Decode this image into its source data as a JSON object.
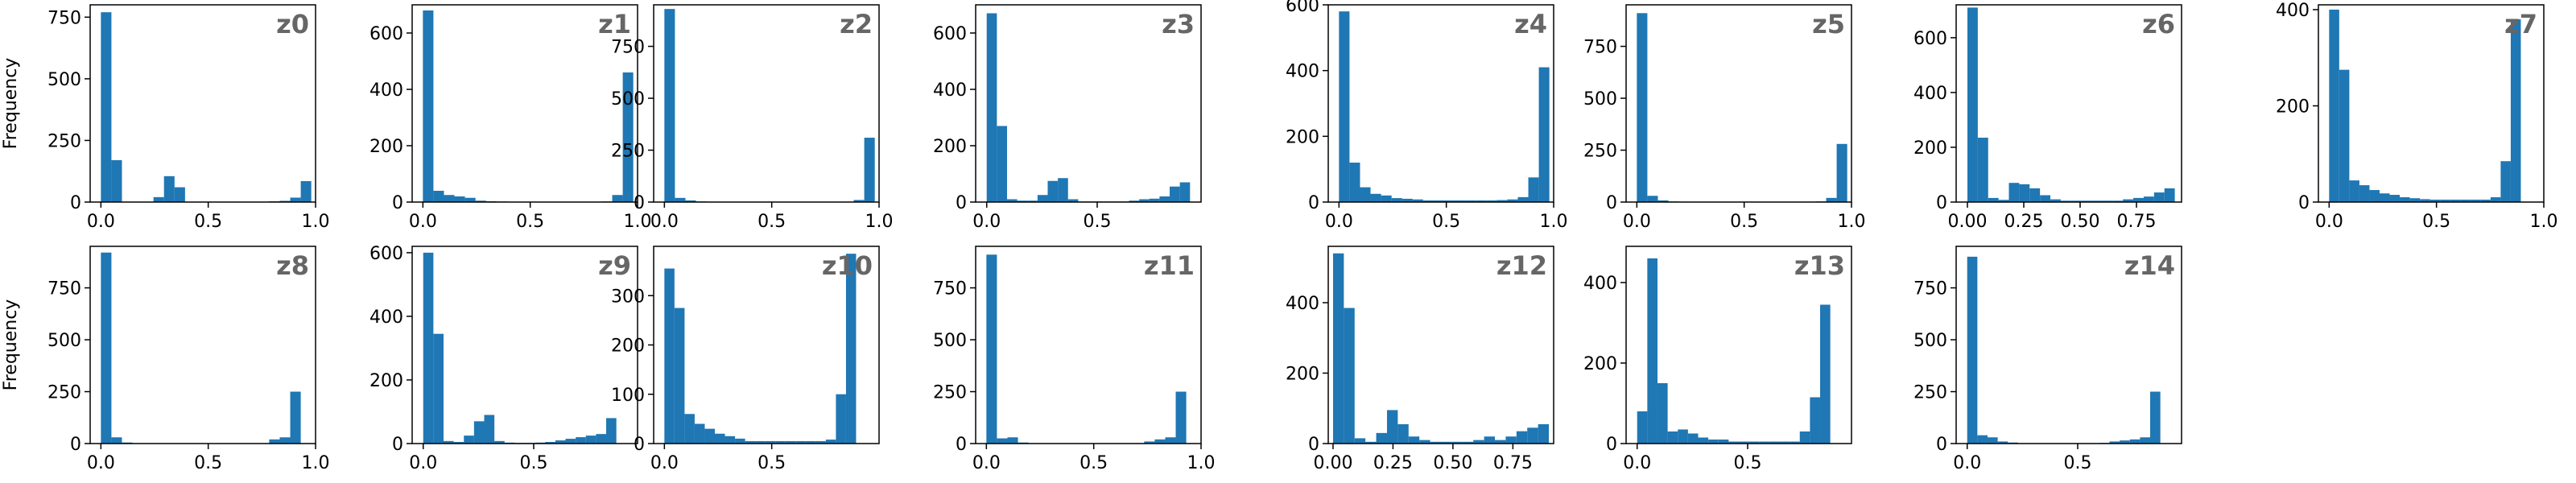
{
  "figure": {
    "bar_color": "#1f77b4",
    "title_color": "#666666"
  },
  "chart_data": [
    {
      "type": "bar",
      "title": "z0",
      "ylabel": "Frequency",
      "xlim": [
        -0.05,
        1.0
      ],
      "ylim": [
        0,
        800
      ],
      "xticks": [
        0,
        0.5,
        1.0
      ],
      "xtick_labels": [
        "0.0",
        "0.5",
        "1.0"
      ],
      "yticks": [
        0,
        250,
        500,
        750
      ],
      "ytick_labels": [
        "0",
        "250",
        "500",
        "750"
      ],
      "bin_start": 0.0,
      "bin_width": 0.049,
      "values": [
        770,
        170,
        0,
        0,
        0,
        20,
        105,
        60,
        0,
        0,
        0,
        0,
        0,
        0,
        0,
        0,
        3,
        5,
        18,
        85
      ]
    },
    {
      "type": "bar",
      "title": "z1",
      "ylabel": "",
      "xlim": [
        -0.05,
        1.0
      ],
      "ylim": [
        0,
        700
      ],
      "xticks": [
        0,
        0.5,
        1.0
      ],
      "xtick_labels": [
        "0.0",
        "0.5",
        "1.0"
      ],
      "yticks": [
        0,
        200,
        400,
        600
      ],
      "ytick_labels": [
        "0",
        "200",
        "400",
        "600"
      ],
      "bin_start": 0.0,
      "bin_width": 0.049,
      "values": [
        680,
        40,
        25,
        20,
        15,
        5,
        3,
        2,
        1,
        1,
        1,
        1,
        1,
        1,
        1,
        1,
        1,
        2,
        25,
        460
      ]
    },
    {
      "type": "bar",
      "title": "z2",
      "ylabel": "",
      "xlim": [
        -0.05,
        1.0
      ],
      "ylim": [
        0,
        950
      ],
      "xticks": [
        0,
        0.5,
        1.0
      ],
      "xtick_labels": [
        "0.0",
        "0.5",
        "1.0"
      ],
      "yticks": [
        0,
        250,
        500,
        750
      ],
      "ytick_labels": [
        "0",
        "250",
        "500",
        "750"
      ],
      "bin_start": 0.0,
      "bin_width": 0.049,
      "values": [
        930,
        20,
        8,
        3,
        2,
        1,
        1,
        1,
        1,
        1,
        1,
        1,
        1,
        1,
        1,
        1,
        1,
        2,
        10,
        310
      ]
    },
    {
      "type": "bar",
      "title": "z3",
      "ylabel": "",
      "xlim": [
        -0.05,
        0.97
      ],
      "ylim": [
        0,
        700
      ],
      "xticks": [
        0,
        0.5
      ],
      "xtick_labels": [
        "0.0",
        "0.5"
      ],
      "yticks": [
        0,
        200,
        400,
        600
      ],
      "ytick_labels": [
        "0",
        "200",
        "400",
        "600"
      ],
      "bin_start": 0.0,
      "bin_width": 0.046,
      "values": [
        670,
        270,
        10,
        5,
        5,
        25,
        75,
        85,
        10,
        2,
        2,
        2,
        2,
        2,
        5,
        10,
        12,
        20,
        55,
        70
      ]
    },
    {
      "type": "bar",
      "title": "z4",
      "ylabel": "",
      "xlim": [
        -0.05,
        1.0
      ],
      "ylim": [
        0,
        600
      ],
      "xticks": [
        0,
        0.5,
        1.0
      ],
      "xtick_labels": [
        "0.0",
        "0.5",
        "1.0"
      ],
      "yticks": [
        0,
        200,
        400,
        600
      ],
      "ytick_labels": [
        "0",
        "200",
        "400",
        "600"
      ],
      "bin_start": 0.0,
      "bin_width": 0.049,
      "values": [
        580,
        120,
        45,
        25,
        20,
        12,
        10,
        8,
        5,
        5,
        5,
        5,
        5,
        5,
        5,
        6,
        8,
        15,
        75,
        410
      ]
    },
    {
      "type": "bar",
      "title": "z5",
      "ylabel": "",
      "xlim": [
        -0.05,
        1.0
      ],
      "ylim": [
        0,
        950
      ],
      "xticks": [
        0,
        0.5,
        1.0
      ],
      "xtick_labels": [
        "0.0",
        "0.5",
        "1.0"
      ],
      "yticks": [
        0,
        250,
        500,
        750
      ],
      "ytick_labels": [
        "0",
        "250",
        "500",
        "750"
      ],
      "bin_start": 0.0,
      "bin_width": 0.049,
      "values": [
        910,
        30,
        8,
        3,
        2,
        1,
        1,
        1,
        1,
        1,
        1,
        1,
        1,
        1,
        1,
        1,
        2,
        3,
        20,
        280
      ]
    },
    {
      "type": "bar",
      "title": "z6",
      "ylabel": "",
      "xlim": [
        -0.05,
        0.95
      ],
      "ylim": [
        0,
        720
      ],
      "xticks": [
        0,
        0.25,
        0.5,
        0.75
      ],
      "xtick_labels": [
        "0.00",
        "0.25",
        "0.50",
        "0.75"
      ],
      "yticks": [
        0,
        200,
        400,
        600
      ],
      "ytick_labels": [
        "0",
        "200",
        "400",
        "600"
      ],
      "bin_start": 0.0,
      "bin_width": 0.046,
      "values": [
        710,
        235,
        15,
        8,
        70,
        65,
        50,
        25,
        10,
        5,
        5,
        5,
        5,
        5,
        5,
        10,
        15,
        20,
        35,
        50
      ]
    },
    {
      "type": "bar",
      "title": "z7",
      "ylabel": "",
      "xlim": [
        -0.05,
        1.0
      ],
      "ylim": [
        0,
        410
      ],
      "xticks": [
        0,
        0.5,
        1.0
      ],
      "xtick_labels": [
        "0.0",
        "0.5",
        "1.0"
      ],
      "yticks": [
        0,
        200,
        400
      ],
      "ytick_labels": [
        "0",
        "200",
        "400"
      ],
      "bin_start": 0.0,
      "bin_width": 0.047,
      "values": [
        400,
        275,
        45,
        35,
        25,
        18,
        15,
        10,
        8,
        6,
        5,
        5,
        5,
        5,
        5,
        5,
        10,
        85,
        380,
        0
      ]
    },
    {
      "type": "bar",
      "title": "z8",
      "ylabel": "Frequency",
      "xlim": [
        -0.05,
        1.0
      ],
      "ylim": [
        0,
        950
      ],
      "xticks": [
        0,
        0.5,
        1.0
      ],
      "xtick_labels": [
        "0.0",
        "0.5",
        "1.0"
      ],
      "yticks": [
        0,
        250,
        500,
        750
      ],
      "ytick_labels": [
        "0",
        "250",
        "500",
        "750"
      ],
      "bin_start": 0.0,
      "bin_width": 0.049,
      "values": [
        920,
        30,
        5,
        2,
        1,
        1,
        1,
        1,
        1,
        1,
        1,
        1,
        1,
        1,
        1,
        2,
        20,
        30,
        250,
        0
      ]
    },
    {
      "type": "bar",
      "title": "z9",
      "ylabel": "",
      "xlim": [
        -0.05,
        0.97
      ],
      "ylim": [
        0,
        620
      ],
      "xticks": [
        0,
        0.5
      ],
      "xtick_labels": [
        "0.0",
        "0.5"
      ],
      "yticks": [
        0,
        200,
        400,
        600
      ],
      "ytick_labels": [
        "0",
        "200",
        "400",
        "600"
      ],
      "bin_start": 0.0,
      "bin_width": 0.046,
      "values": [
        600,
        345,
        8,
        5,
        25,
        70,
        90,
        8,
        3,
        2,
        2,
        3,
        5,
        10,
        15,
        20,
        25,
        30,
        80,
        0
      ]
    },
    {
      "type": "bar",
      "title": "z10",
      "ylabel": "",
      "xlim": [
        -0.05,
        1.0
      ],
      "ylim": [
        0,
        400
      ],
      "xticks": [
        0,
        0.5
      ],
      "xtick_labels": [
        "0.0",
        "0.5"
      ],
      "yticks": [
        0,
        100,
        200,
        300
      ],
      "ytick_labels": [
        "0",
        "100",
        "200",
        "300"
      ],
      "bin_start": 0.0,
      "bin_width": 0.047,
      "values": [
        355,
        275,
        60,
        40,
        30,
        20,
        15,
        10,
        5,
        5,
        5,
        5,
        5,
        5,
        5,
        5,
        8,
        100,
        385,
        0
      ]
    },
    {
      "type": "bar",
      "title": "z11",
      "ylabel": "",
      "xlim": [
        -0.05,
        1.0
      ],
      "ylim": [
        0,
        950
      ],
      "xticks": [
        0,
        0.5,
        1.0
      ],
      "xtick_labels": [
        "0.0",
        "0.5",
        "1.0"
      ],
      "yticks": [
        0,
        250,
        500,
        750
      ],
      "ytick_labels": [
        "0",
        "250",
        "500",
        "750"
      ],
      "bin_start": 0.0,
      "bin_width": 0.049,
      "values": [
        910,
        25,
        30,
        5,
        2,
        1,
        1,
        1,
        1,
        1,
        1,
        1,
        1,
        1,
        2,
        10,
        20,
        30,
        250,
        0
      ]
    },
    {
      "type": "bar",
      "title": "z12",
      "ylabel": "",
      "xlim": [
        -0.02,
        0.92
      ],
      "ylim": [
        0,
        560
      ],
      "xticks": [
        0,
        0.25,
        0.5,
        0.75
      ],
      "xtick_labels": [
        "0.00",
        "0.25",
        "0.50",
        "0.75"
      ],
      "yticks": [
        0,
        200,
        400
      ],
      "ytick_labels": [
        "0",
        "200",
        "400"
      ],
      "bin_start": 0.0,
      "bin_width": 0.045,
      "values": [
        540,
        385,
        15,
        5,
        30,
        95,
        55,
        20,
        10,
        5,
        5,
        5,
        5,
        10,
        20,
        10,
        20,
        35,
        45,
        55
      ]
    },
    {
      "type": "bar",
      "title": "z13",
      "ylabel": "",
      "xlim": [
        -0.05,
        0.97
      ],
      "ylim": [
        0,
        490
      ],
      "xticks": [
        0,
        0.5
      ],
      "xtick_labels": [
        "0.0",
        "0.5"
      ],
      "yticks": [
        0,
        200,
        400
      ],
      "ytick_labels": [
        "0",
        "200",
        "400"
      ],
      "bin_start": 0.0,
      "bin_width": 0.046,
      "values": [
        80,
        460,
        150,
        30,
        35,
        25,
        15,
        10,
        10,
        5,
        5,
        5,
        5,
        5,
        5,
        5,
        30,
        115,
        345,
        0
      ]
    },
    {
      "type": "bar",
      "title": "z14",
      "ylabel": "",
      "xlim": [
        -0.05,
        0.97
      ],
      "ylim": [
        0,
        950
      ],
      "xticks": [
        0,
        0.5
      ],
      "xtick_labels": [
        "0.0",
        "0.5"
      ],
      "yticks": [
        0,
        250,
        500,
        750
      ],
      "ytick_labels": [
        "0",
        "250",
        "500",
        "750"
      ],
      "bin_start": 0.0,
      "bin_width": 0.046,
      "values": [
        900,
        40,
        30,
        10,
        5,
        2,
        2,
        2,
        2,
        2,
        2,
        2,
        2,
        3,
        10,
        15,
        20,
        30,
        250,
        0
      ]
    }
  ]
}
